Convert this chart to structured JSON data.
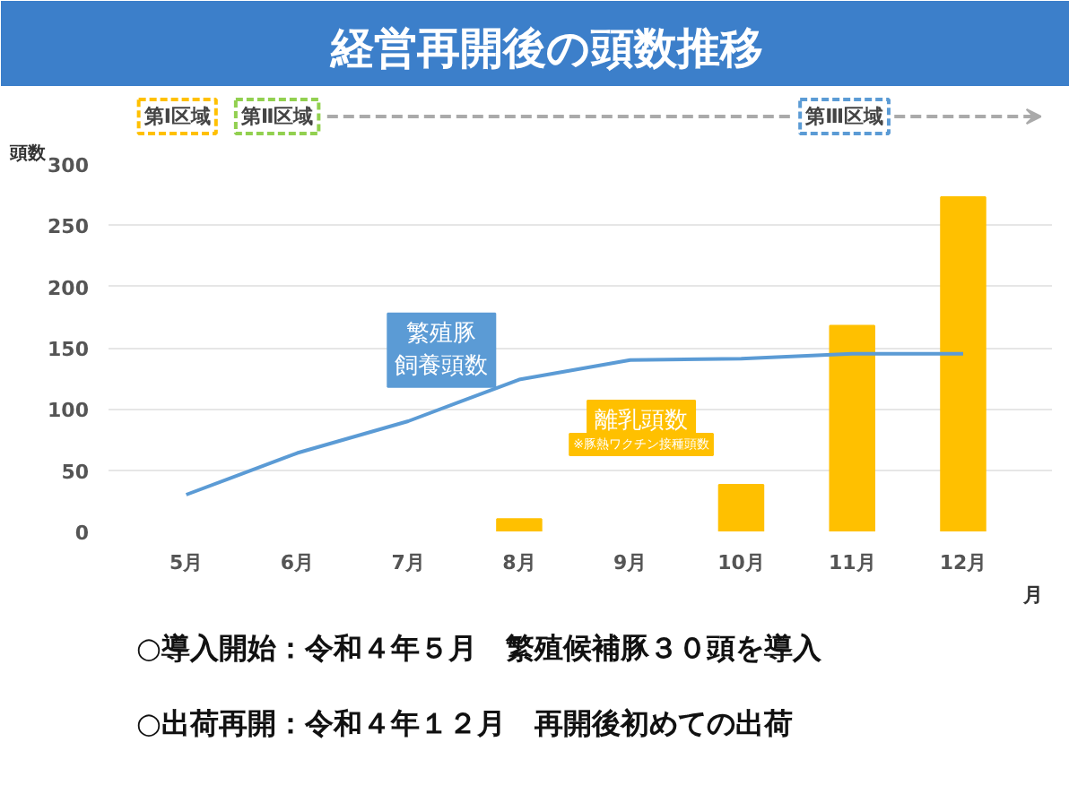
{
  "chart_data": {
    "type": "bar",
    "title": "経営再開後の頭数推移",
    "xlabel": "月",
    "ylabel": "頭数",
    "categories": [
      "5月",
      "6月",
      "7月",
      "8月",
      "9月",
      "10月",
      "11月",
      "12月"
    ],
    "series": [
      {
        "name": "繁殖豚飼養頭数",
        "type": "line",
        "color": "#5b9bd5",
        "values": [
          30,
          64,
          90,
          124,
          140,
          141,
          145,
          145
        ]
      },
      {
        "name": "離乳頭数",
        "color": "#ffc000",
        "values": [
          null,
          null,
          null,
          10,
          null,
          38,
          168,
          273
        ]
      }
    ],
    "ylim": [
      0,
      300
    ],
    "yticks": [
      0,
      50,
      100,
      150,
      200,
      250,
      300
    ],
    "grid": "y",
    "annotations": [
      "第Ⅰ区域",
      "第Ⅱ区域",
      "第Ⅲ区域",
      "※豚熱ワクチン接種頭数",
      "○導入開始：令和４年５月　繁殖候補豚３０頭を導入",
      "○出荷再開：令和４年１２月　再開後初めての出荷"
    ]
  }
}
